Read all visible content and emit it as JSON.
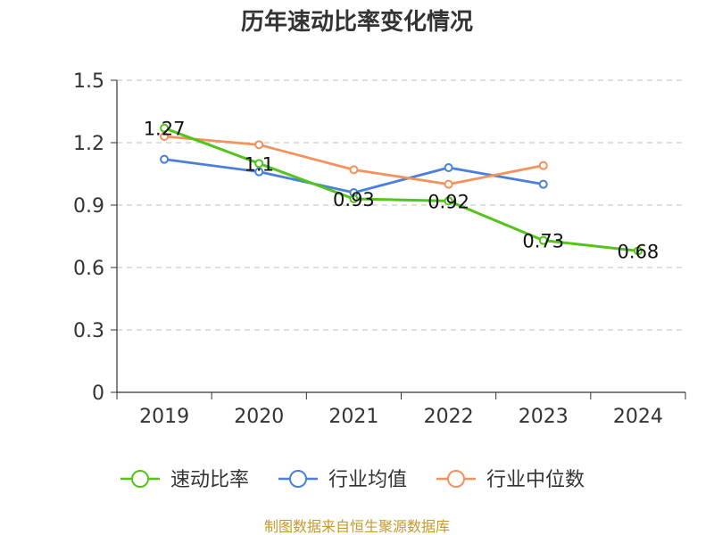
{
  "chart_data": {
    "type": "line",
    "title": "历年速动比率变化情况",
    "categories": [
      "2019",
      "2020",
      "2021",
      "2022",
      "2023",
      "2024"
    ],
    "ylim": [
      0,
      1.5
    ],
    "yticks": [
      "0",
      "0.3",
      "0.6",
      "0.9",
      "1.2",
      "1.5"
    ],
    "grid": true,
    "legend_position": "bottom",
    "series": [
      {
        "name": "速动比率",
        "color": "#52c41a",
        "values": [
          1.27,
          1.1,
          0.93,
          0.92,
          0.73,
          0.68
        ],
        "labels": [
          "1.27",
          "1.1",
          "0.93",
          "0.92",
          "0.73",
          "0.68"
        ]
      },
      {
        "name": "行业均值",
        "color": "#4a7fdb",
        "values": [
          1.12,
          1.06,
          0.96,
          1.08,
          1.0,
          null
        ]
      },
      {
        "name": "行业中位数",
        "color": "#f4915c",
        "values": [
          1.23,
          1.19,
          1.07,
          1.0,
          1.09,
          null
        ]
      }
    ],
    "source": "制图数据来自恒生聚源数据库"
  }
}
